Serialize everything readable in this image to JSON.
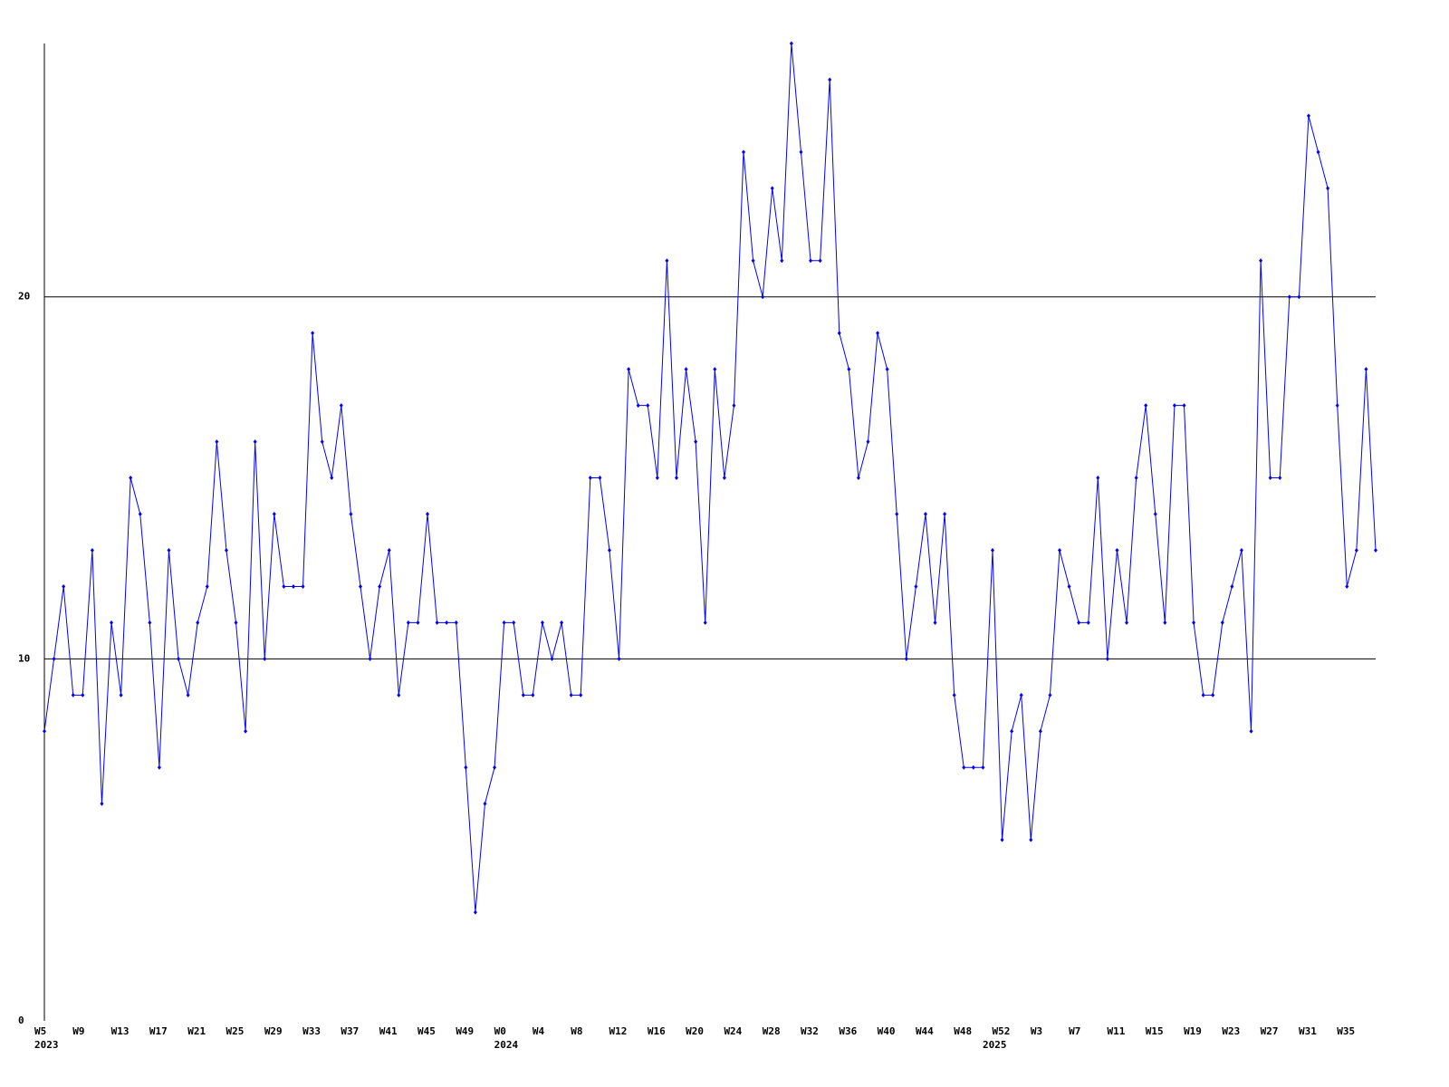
{
  "chart_data": {
    "type": "line",
    "categories": [
      "W5",
      null,
      null,
      null,
      "W9",
      null,
      null,
      null,
      "W13",
      null,
      null,
      null,
      "W17",
      null,
      null,
      null,
      "W21",
      null,
      null,
      null,
      "W25",
      null,
      null,
      null,
      "W29",
      null,
      null,
      null,
      "W33",
      null,
      null,
      null,
      "W37",
      null,
      null,
      null,
      "W41",
      null,
      null,
      null,
      "W45",
      null,
      null,
      null,
      "W49",
      null,
      null,
      null,
      "W0",
      null,
      null,
      null,
      "W4",
      null,
      null,
      null,
      "W8",
      null,
      null,
      null,
      "W12",
      null,
      null,
      null,
      "W16",
      null,
      null,
      null,
      "W20",
      null,
      null,
      null,
      "W24",
      null,
      null,
      null,
      "W28",
      null,
      null,
      null,
      "W32",
      null,
      null,
      null,
      "W36",
      null,
      null,
      null,
      "W40",
      null,
      null,
      null,
      "W44",
      null,
      null,
      null,
      "W48",
      null,
      null,
      null,
      "W52",
      null,
      null,
      null,
      "W3",
      null,
      null,
      null,
      "W7",
      null,
      null,
      null,
      "W11",
      null,
      null,
      null,
      "W15",
      null,
      null,
      null,
      "W19",
      null,
      null,
      null,
      "W23",
      null,
      null,
      null,
      "W27",
      null,
      null,
      null,
      "W31",
      null,
      null,
      null,
      "W35",
      null,
      null,
      null
    ],
    "category_groups": [
      "2023",
      null,
      null,
      null,
      null,
      null,
      null,
      null,
      null,
      null,
      null,
      null,
      null,
      null,
      null,
      null,
      null,
      null,
      null,
      null,
      null,
      null,
      null,
      null,
      null,
      null,
      null,
      null,
      null,
      null,
      null,
      null,
      null,
      null,
      null,
      null,
      null,
      null,
      null,
      null,
      null,
      null,
      null,
      null,
      null,
      null,
      null,
      null,
      "2024",
      null,
      null,
      null,
      null,
      null,
      null,
      null,
      null,
      null,
      null,
      null,
      null,
      null,
      null,
      null,
      null,
      null,
      null,
      null,
      null,
      null,
      null,
      null,
      null,
      null,
      null,
      null,
      null,
      null,
      null,
      null,
      null,
      null,
      null,
      null,
      null,
      null,
      null,
      null,
      null,
      null,
      null,
      null,
      null,
      null,
      null,
      null,
      null,
      null,
      null,
      "2025",
      null,
      null,
      null,
      null,
      null,
      null,
      null,
      null,
      null,
      null,
      null,
      null,
      null,
      null,
      null,
      null,
      null,
      null,
      null,
      null,
      null,
      null,
      null,
      null,
      null,
      null,
      null,
      null,
      null,
      null,
      null,
      null,
      null,
      null,
      null,
      null,
      null
    ],
    "values": [
      8,
      10,
      12,
      9,
      9,
      13,
      6,
      11,
      9,
      15,
      14,
      11,
      7,
      13,
      10,
      9,
      11,
      12,
      16,
      13,
      11,
      8,
      16,
      10,
      14,
      12,
      12,
      12,
      19,
      16,
      15,
      17,
      14,
      12,
      10,
      12,
      13,
      9,
      11,
      11,
      14,
      11,
      11,
      11,
      7,
      3,
      6,
      7,
      11,
      11,
      9,
      9,
      11,
      10,
      11,
      9,
      9,
      15,
      15,
      13,
      10,
      18,
      17,
      17,
      15,
      21,
      15,
      18,
      16,
      11,
      18,
      15,
      17,
      24,
      21,
      20,
      23,
      21,
      27,
      24,
      21,
      21,
      26,
      19,
      18,
      15,
      16,
      19,
      18,
      14,
      10,
      12,
      14,
      11,
      14,
      9,
      7,
      7,
      7,
      13,
      5,
      8,
      9,
      5,
      8,
      9,
      13,
      12,
      11,
      11,
      15,
      10,
      13,
      11,
      15,
      17,
      14,
      11,
      17,
      17,
      11,
      9,
      9,
      11,
      12,
      13,
      8,
      21,
      15,
      15,
      20,
      20,
      25,
      24,
      23,
      17,
      12,
      13,
      18,
      13
    ],
    "color": "#0000ff",
    "ylim": [
      0,
      27
    ],
    "yticks": [
      0,
      10,
      20
    ],
    "grid": true
  }
}
